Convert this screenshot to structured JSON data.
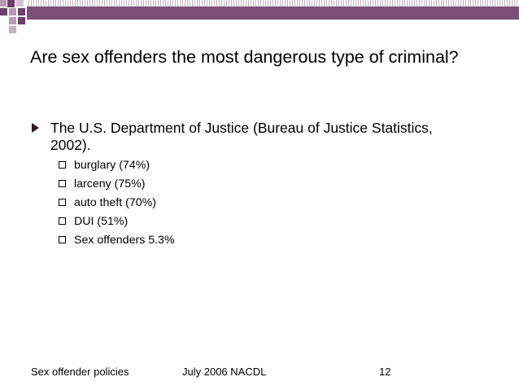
{
  "title": "Are sex offenders the most dangerous type of criminal?",
  "bullet_main": "The U.S. Department of Justice (Bureau of Justice Statistics, 2002).",
  "sub_bullets": [
    "burglary (74%)",
    "larceny (75%)",
    "auto theft (70%)",
    "DUI (51%)",
    "Sex offenders 5.3%"
  ],
  "footer": {
    "left": "Sex offender policies",
    "center": "July 2006 NACDL",
    "page": "12"
  },
  "colors": {
    "banner": "#7a4e78",
    "squares_dark": "#6b3f69",
    "squares_light": "#b79ab5"
  }
}
